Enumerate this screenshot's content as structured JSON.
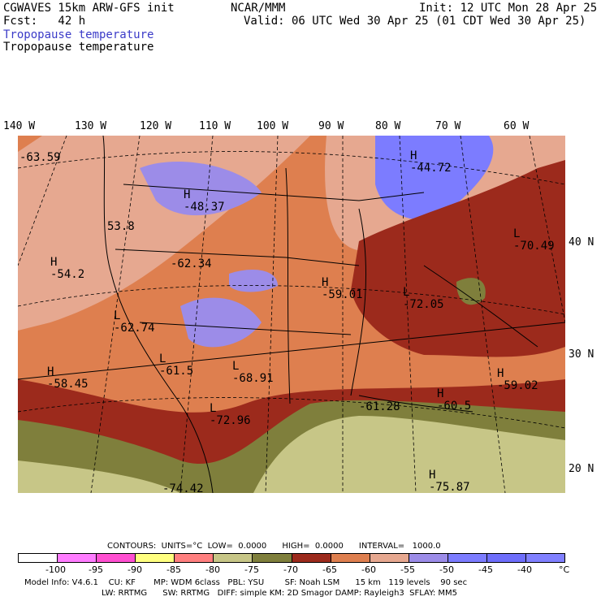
{
  "header": {
    "line1_left": "CGWAVES 15km ARW-GFS init",
    "line1_mid": "NCAR/MMM",
    "line1_right": "Init: 12 UTC Mon 28 Apr 25",
    "line2_left": "Fcst:   42 h",
    "line2_right": "Valid: 06 UTC Wed 30 Apr 25 (01 CDT Wed 30 Apr 25)",
    "field_blue": "Tropopause temperature",
    "field_black": "Tropopause temperature"
  },
  "longitude_labels": [
    "140 W",
    "130 W",
    "120 W",
    "110 W",
    "100 W",
    "90 W",
    "80 W",
    "70 W",
    "60 W"
  ],
  "latitude_labels": [
    "40 N",
    "30 N",
    "20 N"
  ],
  "centers": [
    {
      "type": "",
      "value": "-63.59"
    },
    {
      "type": "H",
      "value": "-44.72"
    },
    {
      "type": "H",
      "value": "-48.37"
    },
    {
      "type": "",
      "value": "53.8"
    },
    {
      "type": "",
      "value": "-62.34"
    },
    {
      "type": "H",
      "value": "-54.2"
    },
    {
      "type": "H",
      "value": "-59.01"
    },
    {
      "type": "L",
      "value": "-70.49"
    },
    {
      "type": "L",
      "value": "-72.05"
    },
    {
      "type": "L",
      "value": "-62.74"
    },
    {
      "type": "L",
      "value": "-61.5"
    },
    {
      "type": "H",
      "value": "-58.45"
    },
    {
      "type": "L",
      "value": "-68.91"
    },
    {
      "type": "L",
      "value": "-72.96"
    },
    {
      "type": "",
      "value": "-61.28"
    },
    {
      "type": "H",
      "value": "-60.5"
    },
    {
      "type": "H",
      "value": "-59.02"
    },
    {
      "type": "",
      "value": "-74.42"
    },
    {
      "type": "H",
      "value": "-75.87"
    }
  ],
  "contours_line": "CONTOURS:  UNITS=°C  LOW=  0.0000      HIGH=  0.0000      INTERVAL=   1000.0",
  "colorbar": {
    "colors": [
      "#ffffff",
      "#ff7cff",
      "#ff4fd1",
      "#ffff80",
      "#ff7f7f",
      "#c7c687",
      "#7f7f3c",
      "#9c2a1c",
      "#de7f4f",
      "#e6a890",
      "#9c8ce8",
      "#7c7cff",
      "#6e6efb",
      "#8080ff"
    ],
    "labels": [
      "-100",
      "-95",
      "-90",
      "-85",
      "-80",
      "-75",
      "-70",
      "-65",
      "-60",
      "-55",
      "-50",
      "-45",
      "-40",
      "°C"
    ]
  },
  "model_info_1": "Model Info: V4.6.1    CU: KF       MP: WDM 6class   PBL: YSU        SF: Noah LSM      15 km   119 levels    90 sec",
  "model_info_2": "LW: RRTMG      SW: RRTMG   DIFF: simple KM: 2D Smagor DAMP: Rayleigh3  SFLAY: MM5"
}
